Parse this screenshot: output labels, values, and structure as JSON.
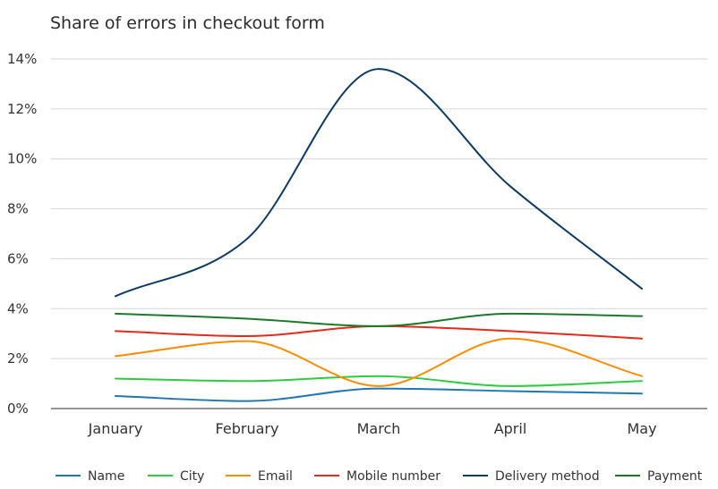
{
  "chart_data": {
    "type": "line",
    "title": "Share of errors in checkout form",
    "xlabel": "",
    "ylabel": "",
    "categories": [
      "January",
      "February",
      "March",
      "April",
      "May"
    ],
    "ylim": [
      0,
      14
    ],
    "yticks": [
      0,
      2,
      4,
      6,
      8,
      10,
      12,
      14
    ],
    "ytick_labels": [
      "0%",
      "2%",
      "4%",
      "6%",
      "8%",
      "10%",
      "12%",
      "14%"
    ],
    "grid": true,
    "legend_position": "bottom",
    "series": [
      {
        "name": "Name",
        "color": "#1f77b4",
        "values": [
          0.5,
          0.3,
          0.8,
          0.7,
          0.6
        ]
      },
      {
        "name": "City",
        "color": "#2ecc40",
        "values": [
          1.2,
          1.1,
          1.3,
          0.9,
          1.1
        ]
      },
      {
        "name": "Email",
        "color": "#ff8c00",
        "values": [
          2.1,
          2.7,
          0.9,
          2.8,
          1.3
        ]
      },
      {
        "name": "Mobile number",
        "color": "#e8291c",
        "values": [
          3.1,
          2.9,
          3.3,
          3.1,
          2.8
        ]
      },
      {
        "name": "Delivery method",
        "color": "#0d3b66",
        "values": [
          4.5,
          6.8,
          13.6,
          8.9,
          4.8
        ]
      },
      {
        "name": "Payment",
        "color": "#1a7a2a",
        "values": [
          3.8,
          3.6,
          3.3,
          3.8,
          3.7
        ]
      }
    ]
  }
}
